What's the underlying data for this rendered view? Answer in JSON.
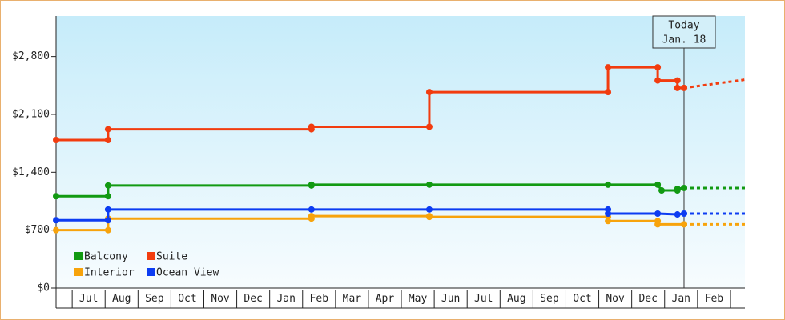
{
  "chart_data": {
    "type": "line",
    "step": true,
    "ylim": [
      0,
      3290
    ],
    "yticks": [
      {
        "value": 0,
        "label": "$0"
      },
      {
        "value": 700,
        "label": "$700"
      },
      {
        "value": 1400,
        "label": "$1,400"
      },
      {
        "value": 2100,
        "label": "$2,100"
      },
      {
        "value": 2800,
        "label": "$2,800"
      }
    ],
    "xlim": [
      -0.49,
      20.44
    ],
    "xticks": [
      0,
      1,
      2,
      3,
      4,
      5,
      6,
      7,
      8,
      9,
      10,
      11,
      12,
      13,
      14,
      15,
      16,
      17,
      18,
      19,
      20
    ],
    "categories": [
      "Jul",
      "Aug",
      "Sep",
      "Oct",
      "Nov",
      "Dec",
      "Jan",
      "Feb",
      "Mar",
      "Apr",
      "May",
      "Jun",
      "Jul",
      "Aug",
      "Sep",
      "Oct",
      "Nov",
      "Dec",
      "Jan",
      "Feb"
    ],
    "annotation": {
      "lines": [
        "Today",
        "Jan. 18"
      ],
      "x": 18.59
    },
    "series": [
      {
        "name": "Balcony",
        "color": "#129a12",
        "x": [
          -0.49,
          1.09,
          1.09,
          7.27,
          7.27,
          10.85,
          16.28,
          17.79,
          17.91,
          18.39,
          18.39,
          18.59
        ],
        "values": [
          1110,
          1110,
          1240,
          1240,
          1250,
          1250,
          1250,
          1250,
          1180,
          1180,
          1200,
          1210
        ],
        "forecast_x": [
          18.59,
          20.44
        ],
        "forecast_values": [
          1210,
          1210
        ]
      },
      {
        "name": "Suite",
        "color": "#f23c0f",
        "x": [
          -0.49,
          1.09,
          1.09,
          7.27,
          7.27,
          10.85,
          10.85,
          16.28,
          16.28,
          17.79,
          17.79,
          18.39,
          18.39,
          18.59
        ],
        "values": [
          1790,
          1790,
          1920,
          1920,
          1950,
          1950,
          2370,
          2370,
          2670,
          2670,
          2510,
          2510,
          2420,
          2420
        ],
        "forecast_x": [
          18.59,
          20.44
        ],
        "forecast_values": [
          2420,
          2520
        ]
      },
      {
        "name": "Interior",
        "color": "#f7a30c",
        "x": [
          -0.49,
          1.09,
          1.09,
          7.27,
          7.27,
          10.85,
          10.85,
          16.28,
          16.28,
          17.79,
          17.79,
          18.59
        ],
        "values": [
          700,
          700,
          840,
          840,
          870,
          870,
          860,
          860,
          810,
          810,
          770,
          770
        ],
        "forecast_x": [
          18.59,
          20.44
        ],
        "forecast_values": [
          770,
          770
        ]
      },
      {
        "name": "Ocean View",
        "color": "#0c3cf2",
        "x": [
          -0.49,
          1.09,
          1.09,
          7.27,
          10.85,
          16.28,
          16.28,
          17.79,
          18.39,
          18.59
        ],
        "values": [
          820,
          820,
          950,
          950,
          950,
          950,
          900,
          900,
          890,
          900
        ],
        "forecast_x": [
          18.59,
          20.44
        ],
        "forecast_values": [
          900,
          900
        ]
      }
    ]
  }
}
